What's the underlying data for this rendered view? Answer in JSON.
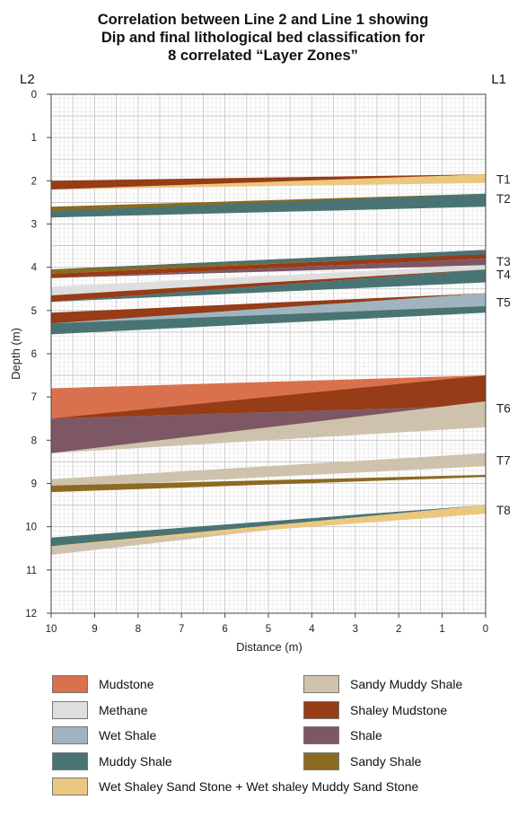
{
  "title_lines": [
    "Correlation between Line 2 and Line 1 showing",
    "Dip and final lithological bed classification for",
    "8 correlated “Layer Zones”"
  ],
  "left_line_label": "L2",
  "right_line_label": "L1",
  "y_axis_label": "Depth (m)",
  "x_axis_label": "Distance (m)",
  "x_ticks": [
    "10",
    "9",
    "8",
    "7",
    "6",
    "5",
    "4",
    "3",
    "2",
    "1",
    "0"
  ],
  "y_ticks": [
    "0",
    "1",
    "2",
    "3",
    "4",
    "5",
    "6",
    "7",
    "8",
    "9",
    "10",
    "11",
    "12"
  ],
  "zone_labels": [
    "T1",
    "T2",
    "T3",
    "T4",
    "T5",
    "T6",
    "T7",
    "T8"
  ],
  "colors": {
    "mudstone": "#D9714E",
    "methane": "#DEDEDE",
    "wet_shale": "#9FB4BF",
    "muddy_shale": "#4A7474",
    "sandy_muddy_shale": "#CFC2AD",
    "shaley_mudstone": "#963C16",
    "shale": "#7D5764",
    "sandy_shale": "#8C6A20",
    "wet_sand": "#EBC77F"
  },
  "legend": [
    {
      "key": "mudstone",
      "label": "Mudstone"
    },
    {
      "key": "sandy_muddy_shale",
      "label": "Sandy Muddy Shale"
    },
    {
      "key": "methane",
      "label": "Methane"
    },
    {
      "key": "shaley_mudstone",
      "label": "Shaley Mudstone"
    },
    {
      "key": "wet_shale",
      "label": "Wet Shale"
    },
    {
      "key": "shale",
      "label": "Shale"
    },
    {
      "key": "muddy_shale",
      "label": "Muddy Shale"
    },
    {
      "key": "sandy_shale",
      "label": "Sandy Shale"
    },
    {
      "key": "wet_sand",
      "label": "Wet Shaley Sand Stone + Wet shaley Muddy Sand Stone"
    }
  ],
  "beds": [
    {
      "zone": "T1",
      "litho": "shaley_mudstone",
      "top": [
        2.0,
        1.85
      ],
      "bot": [
        2.2,
        2.0
      ]
    },
    {
      "zone": "T1",
      "litho": "wet_sand",
      "top": [
        2.2,
        1.85
      ],
      "bot": [
        2.2,
        2.05
      ]
    },
    {
      "zone": "T2",
      "litho": "sandy_shale",
      "top": [
        2.6,
        2.3
      ],
      "bot": [
        2.7,
        2.45
      ]
    },
    {
      "zone": "T2",
      "litho": "shaley_mudstone",
      "top": [
        2.7,
        2.45
      ],
      "bot": [
        2.85,
        2.45
      ]
    },
    {
      "zone": "T2",
      "litho": "muddy_shale",
      "top": [
        2.7,
        2.3
      ],
      "bot": [
        2.85,
        2.6
      ]
    },
    {
      "zone": "T3",
      "litho": "sandy_shale",
      "top": [
        4.05,
        3.6
      ],
      "bot": [
        4.15,
        3.7
      ]
    },
    {
      "zone": "T3",
      "litho": "muddy_shale",
      "top": [
        4.05,
        3.6
      ],
      "bot": [
        4.05,
        3.75
      ]
    },
    {
      "zone": "T3",
      "litho": "shaley_mudstone",
      "top": [
        4.15,
        3.7
      ],
      "bot": [
        4.25,
        3.8
      ]
    },
    {
      "zone": "T3",
      "litho": "shale",
      "top": [
        4.25,
        3.8
      ],
      "bot": [
        4.25,
        3.95
      ]
    },
    {
      "zone": "T4",
      "litho": "methane",
      "top": [
        4.45,
        3.95
      ],
      "bot": [
        4.65,
        4.05
      ]
    },
    {
      "zone": "T4",
      "litho": "shaley_mudstone",
      "top": [
        4.65,
        4.05
      ],
      "bot": [
        4.8,
        4.05
      ]
    },
    {
      "zone": "T4",
      "litho": "muddy_shale",
      "top": [
        4.8,
        4.05
      ],
      "bot": [
        4.8,
        4.35
      ]
    },
    {
      "zone": "T5",
      "litho": "shaley_mudstone",
      "top": [
        5.05,
        4.6
      ],
      "bot": [
        5.3,
        4.6
      ]
    },
    {
      "zone": "T5",
      "litho": "muddy_shale",
      "top": [
        5.3,
        4.6
      ],
      "bot": [
        5.55,
        5.05
      ]
    },
    {
      "zone": "T5",
      "litho": "wet_shale",
      "top": [
        5.3,
        4.6
      ],
      "bot": [
        5.3,
        4.9
      ]
    },
    {
      "zone": "T6",
      "litho": "mudstone",
      "top": [
        6.8,
        6.5
      ],
      "bot": [
        7.5,
        7.2
      ]
    },
    {
      "zone": "T6",
      "litho": "shaley_mudstone",
      "top": [
        7.5,
        6.5
      ],
      "bot": [
        7.5,
        7.2
      ]
    },
    {
      "zone": "T6",
      "litho": "shale",
      "top": [
        7.5,
        7.2
      ],
      "bot": [
        8.3,
        7.2
      ]
    },
    {
      "zone": "T6",
      "litho": "sandy_muddy_shale",
      "top": [
        8.3,
        7.1
      ],
      "bot": [
        8.3,
        7.7
      ]
    },
    {
      "zone": "T7",
      "litho": "sandy_muddy_shale",
      "top": [
        8.9,
        8.3
      ],
      "bot": [
        9.1,
        8.6
      ]
    },
    {
      "zone": "T7",
      "litho": "sandy_shale",
      "top": [
        9.05,
        8.8
      ],
      "bot": [
        9.2,
        8.85
      ]
    },
    {
      "zone": "T8",
      "litho": "muddy_shale",
      "top": [
        10.25,
        9.5
      ],
      "bot": [
        10.45,
        9.5
      ]
    },
    {
      "zone": "T8",
      "litho": "sandy_muddy_shale",
      "top": [
        10.45,
        9.5
      ],
      "bot": [
        10.65,
        9.5
      ]
    },
    {
      "zone": "T8",
      "litho": "wet_sand",
      "top": [
        10.45,
        9.5
      ],
      "bot": [
        10.45,
        9.7
      ]
    }
  ],
  "zone_label_depths": [
    2.0,
    2.45,
    3.9,
    4.2,
    4.85,
    7.3,
    8.5,
    9.65
  ]
}
